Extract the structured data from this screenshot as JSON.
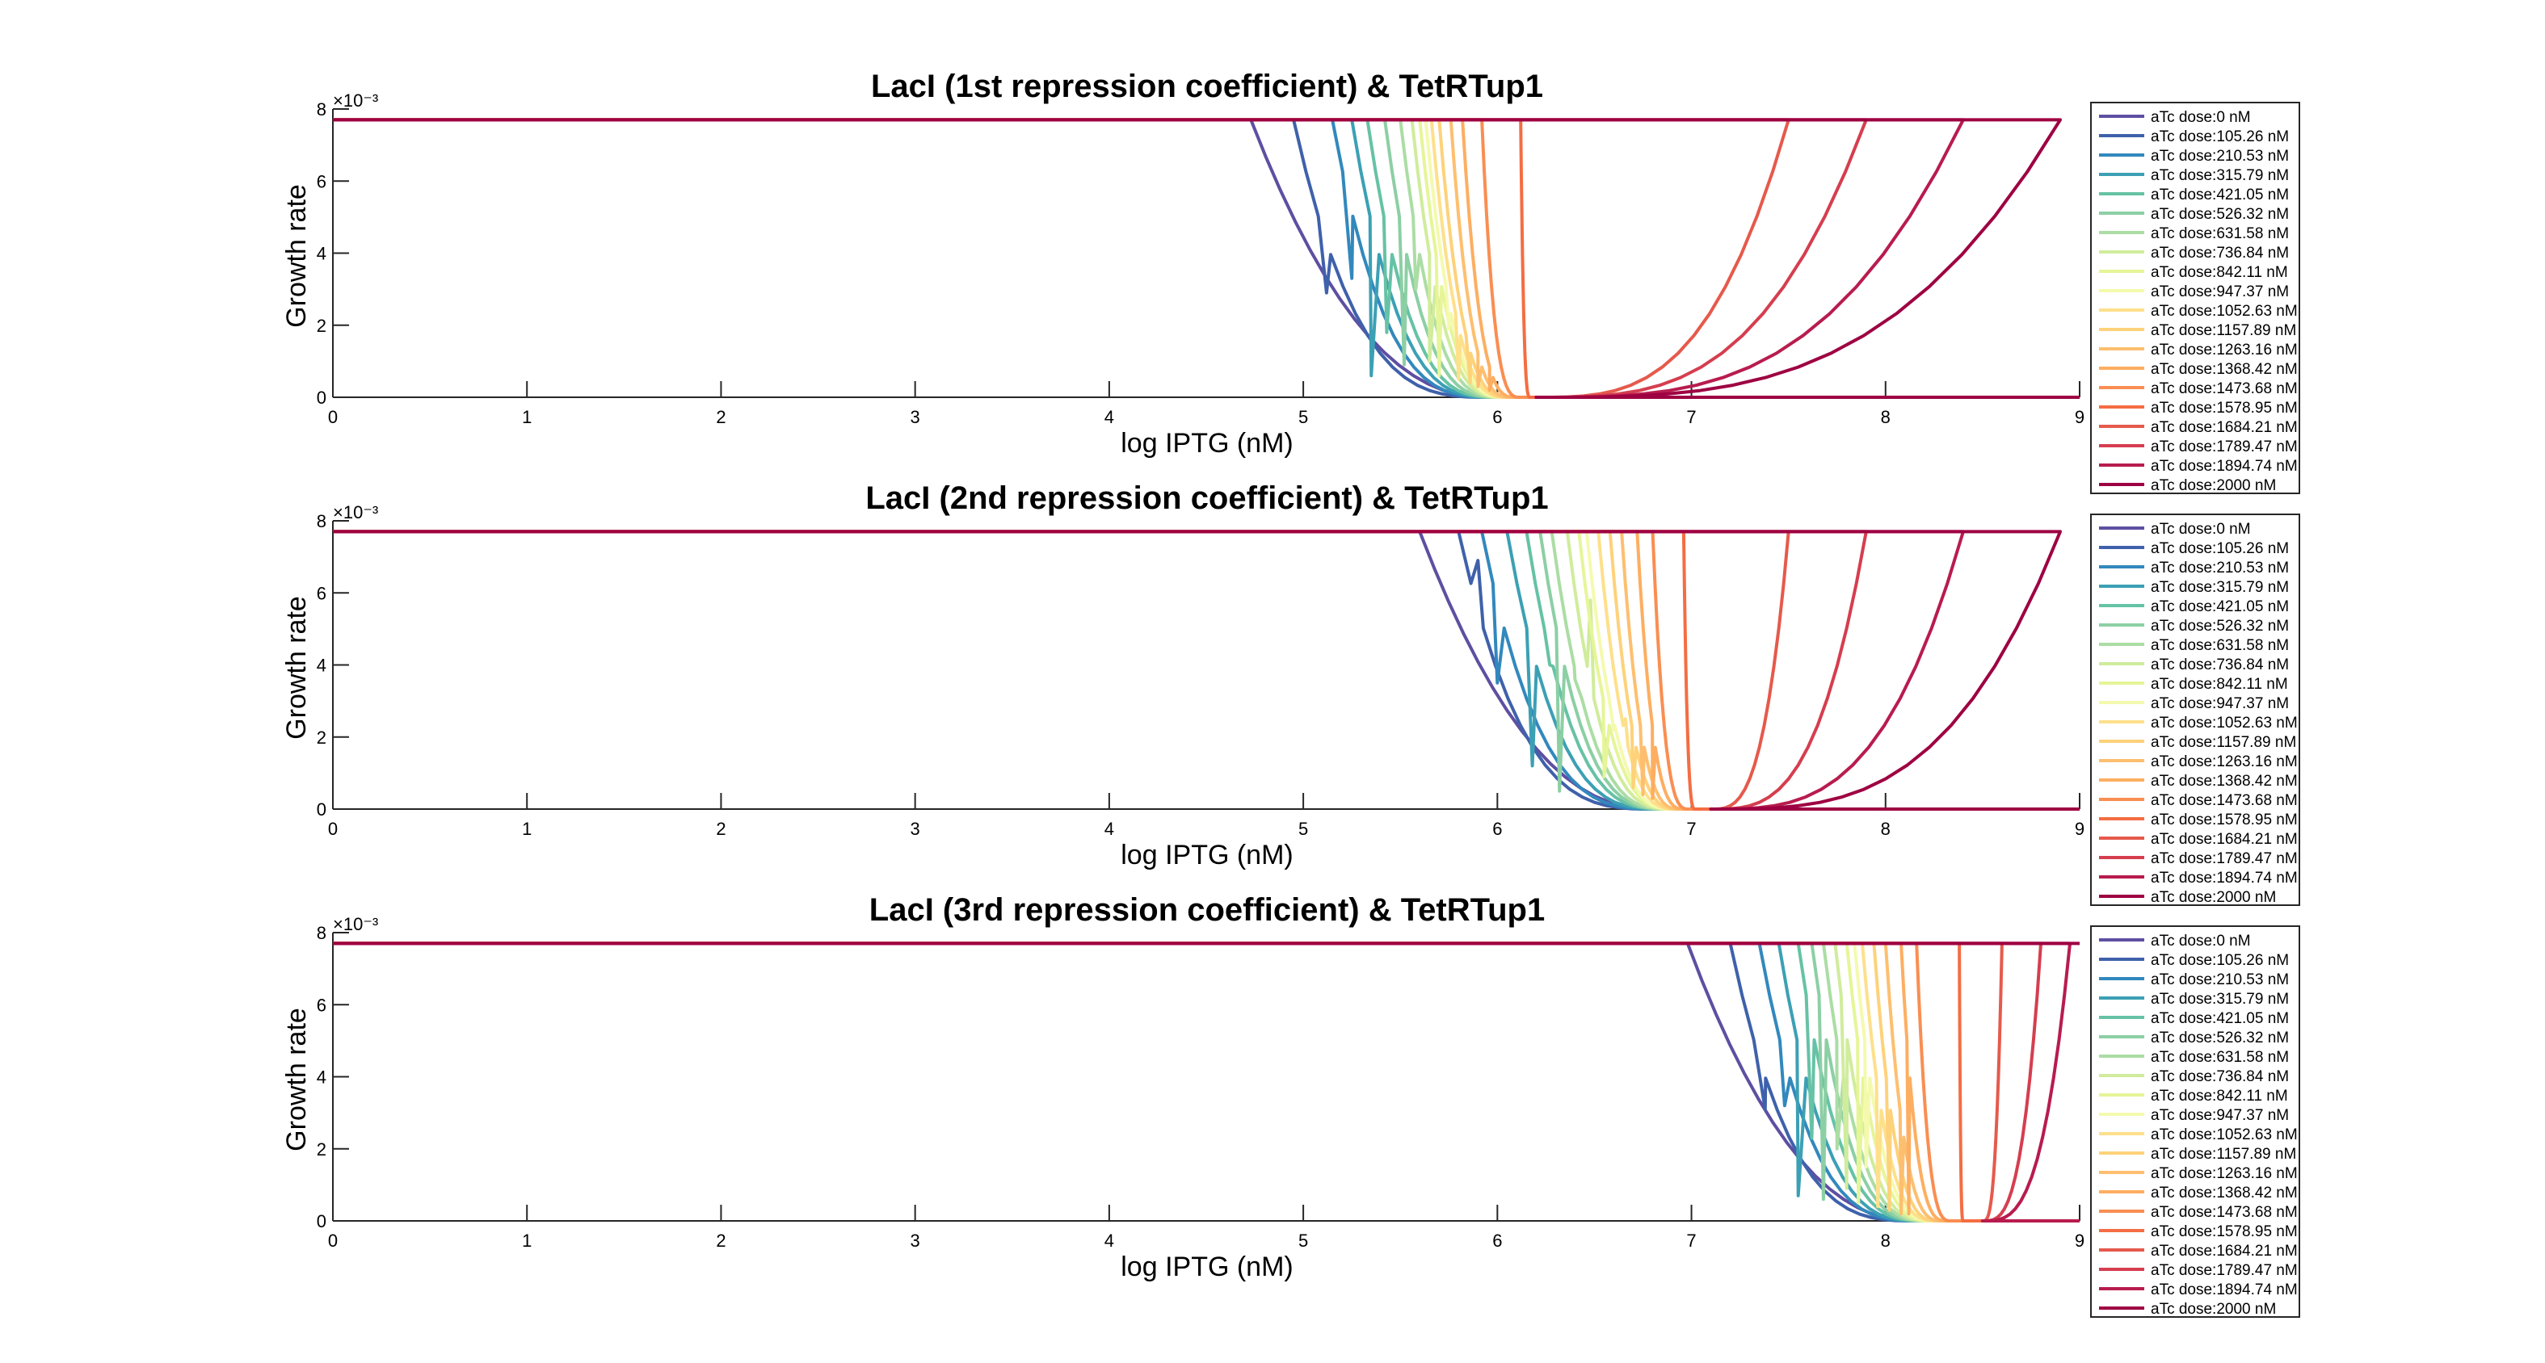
{
  "legend_entries": [
    "aTc dose:0 nM",
    "aTc dose:105.26 nM",
    "aTc dose:210.53 nM",
    "aTc dose:315.79 nM",
    "aTc dose:421.05 nM",
    "aTc dose:526.32 nM",
    "aTc dose:631.58 nM",
    "aTc dose:736.84 nM",
    "aTc dose:842.11 nM",
    "aTc dose:947.37 nM",
    "aTc dose:1052.63 nM",
    "aTc dose:1157.89 nM",
    "aTc dose:1263.16 nM",
    "aTc dose:1368.42 nM",
    "aTc dose:1473.68 nM",
    "aTc dose:1578.95 nM",
    "aTc dose:1684.21 nM",
    "aTc dose:1789.47 nM",
    "aTc dose:1894.74 nM",
    "aTc dose:2000 nM"
  ],
  "colors": [
    "#5e4fa2",
    "#3f61ab",
    "#3288bd",
    "#3ca0b4",
    "#66c2a5",
    "#8ccfa4",
    "#abdda4",
    "#d0ec9c",
    "#e6f598",
    "#f4faad",
    "#fee08b",
    "#fed27a",
    "#fdbf6f",
    "#fdae61",
    "#f98e52",
    "#f46d43",
    "#e55a4c",
    "#d53e4f",
    "#b81c4e",
    "#9e0142"
  ],
  "chart_data": [
    {
      "type": "line",
      "title": "LacI (1st repression coefficient) & TetRTup1",
      "xlabel": "log IPTG (nM)",
      "ylabel": "Growth rate",
      "y_exponent": "×10⁻³",
      "xlim": [
        0,
        9
      ],
      "ylim": [
        0,
        8
      ],
      "x_ticks": [
        0,
        1,
        2,
        3,
        4,
        5,
        6,
        7,
        8,
        9
      ],
      "y_ticks": [
        0,
        2,
        4,
        6,
        8
      ],
      "plateau": 7.7,
      "grid": false,
      "legend": "right",
      "drop_start": [
        4.73,
        4.95,
        5.15,
        5.25,
        5.33,
        5.42,
        5.5,
        5.56,
        5.6,
        5.63,
        5.66,
        5.7,
        5.76,
        5.82,
        5.92,
        6.12,
        7.5,
        7.9,
        8.4,
        8.9
      ],
      "settle_end": [
        5.95,
        5.97,
        5.99,
        6.0,
        6.01,
        6.02,
        6.03,
        6.04,
        6.05,
        6.05,
        6.06,
        6.07,
        6.08,
        6.1,
        6.12,
        6.17,
        6.2,
        6.2,
        6.2,
        6.2
      ],
      "spike": [
        null,
        [
          5.12,
          2.9
        ],
        [
          5.25,
          3.3
        ],
        [
          5.35,
          0.6
        ],
        [
          5.43,
          1.8
        ],
        [
          5.52,
          0.9
        ],
        [
          5.58,
          3.0
        ],
        [
          5.65,
          1.0
        ],
        [
          5.7,
          0.6
        ],
        [
          5.75,
          1.9
        ],
        [
          5.8,
          0.5
        ],
        [
          5.86,
          0.4
        ],
        [
          5.9,
          0.3
        ],
        [
          5.96,
          0.2
        ],
        null,
        null,
        null,
        null,
        null,
        null
      ]
    },
    {
      "type": "line",
      "title": "LacI (2nd repression coefficient) & TetRTup1",
      "xlabel": "log IPTG (nM)",
      "ylabel": "Growth rate",
      "y_exponent": "×10⁻³",
      "xlim": [
        0,
        9
      ],
      "ylim": [
        0,
        8
      ],
      "x_ticks": [
        0,
        1,
        2,
        3,
        4,
        5,
        6,
        7,
        8,
        9
      ],
      "y_ticks": [
        0,
        2,
        4,
        6,
        8
      ],
      "plateau": 7.7,
      "grid": false,
      "legend": "right",
      "drop_start": [
        5.6,
        5.8,
        5.92,
        6.05,
        6.15,
        6.22,
        6.28,
        6.36,
        6.42,
        6.46,
        6.52,
        6.58,
        6.64,
        6.72,
        6.8,
        6.96,
        7.5,
        7.9,
        8.4,
        8.9
      ],
      "settle_end": [
        6.8,
        6.82,
        6.84,
        6.86,
        6.88,
        6.89,
        6.9,
        6.91,
        6.92,
        6.92,
        6.93,
        6.94,
        6.95,
        6.97,
        6.99,
        7.02,
        7.1,
        7.1,
        7.1,
        7.1
      ],
      "spike": [
        null,
        [
          5.9,
          6.9
        ],
        [
          6.0,
          3.5
        ],
        [
          6.18,
          1.2
        ],
        [
          6.27,
          4.0
        ],
        [
          6.32,
          0.5
        ],
        [
          6.4,
          3.6
        ],
        [
          6.48,
          5.8
        ],
        [
          6.55,
          0.9
        ],
        [
          6.6,
          2.2
        ],
        [
          6.66,
          2.5
        ],
        [
          6.7,
          0.6
        ],
        [
          6.75,
          0.4
        ],
        [
          6.8,
          0.3
        ],
        null,
        null,
        null,
        null,
        null,
        null
      ]
    },
    {
      "type": "line",
      "title": "LacI (3rd repression coefficient) & TetRTup1",
      "xlabel": "log IPTG (nM)",
      "ylabel": "Growth rate",
      "y_exponent": "×10⁻³",
      "xlim": [
        0,
        9
      ],
      "ylim": [
        0,
        8
      ],
      "x_ticks": [
        0,
        1,
        2,
        3,
        4,
        5,
        6,
        7,
        8,
        9
      ],
      "y_ticks": [
        0,
        2,
        4,
        6,
        8
      ],
      "plateau": 7.7,
      "grid": false,
      "legend": "right",
      "drop_start": [
        6.98,
        7.2,
        7.35,
        7.45,
        7.55,
        7.62,
        7.68,
        7.74,
        7.8,
        7.84,
        7.88,
        7.94,
        8.0,
        8.08,
        8.16,
        8.38,
        8.6,
        8.8,
        8.95,
        9.0
      ],
      "settle_end": [
        8.15,
        8.17,
        8.19,
        8.2,
        8.21,
        8.22,
        8.23,
        8.24,
        8.25,
        8.26,
        8.27,
        8.28,
        8.3,
        8.32,
        8.34,
        8.4,
        8.5,
        8.5,
        8.5,
        8.5
      ],
      "spike": [
        null,
        [
          7.38,
          3.1
        ],
        [
          7.48,
          3.2
        ],
        [
          7.55,
          0.7
        ],
        [
          7.62,
          2.3
        ],
        [
          7.68,
          0.6
        ],
        [
          7.75,
          2.0
        ],
        [
          7.8,
          0.9
        ],
        [
          7.86,
          0.5
        ],
        [
          7.9,
          1.5
        ],
        [
          7.96,
          0.4
        ],
        [
          8.02,
          0.3
        ],
        [
          8.08,
          0.2
        ],
        [
          8.12,
          0.2
        ],
        null,
        null,
        null,
        null,
        null,
        null
      ]
    }
  ]
}
